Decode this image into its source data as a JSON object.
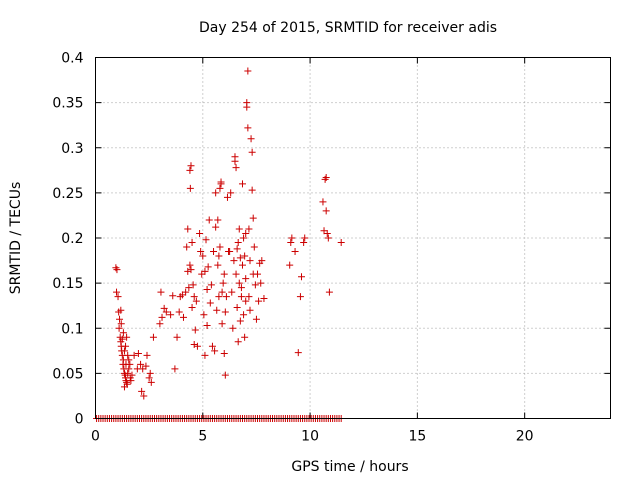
{
  "chart_data": {
    "type": "scatter",
    "title": "Day 254 of 2015, SRMTID for receiver adis",
    "xlabel": "GPS time / hours",
    "ylabel": "SRMTID / TECUs",
    "xlim": [
      0,
      24
    ],
    "ylim": [
      0,
      0.4
    ],
    "x_ticks": [
      0,
      5,
      10,
      15,
      20
    ],
    "x_tick_labels": [
      "0",
      "5",
      "10",
      "15",
      "20"
    ],
    "y_ticks": [
      0,
      0.05,
      0.1,
      0.15,
      0.2,
      0.25,
      0.3,
      0.35,
      0.4
    ],
    "y_tick_labels": [
      "0",
      "0.05",
      "0.1",
      "0.15",
      "0.2",
      "0.25",
      "0.3",
      "0.35",
      "0.4"
    ],
    "grid": true,
    "marker": "+",
    "series": [
      {
        "name": "SRMTID",
        "color": "#cc0000",
        "points": [
          [
            0.05,
            0
          ],
          [
            0.15,
            0
          ],
          [
            0.25,
            0
          ],
          [
            0.35,
            0
          ],
          [
            0.45,
            0
          ],
          [
            0.55,
            0
          ],
          [
            0.65,
            0
          ],
          [
            0.75,
            0
          ],
          [
            0.85,
            0
          ],
          [
            0.95,
            0
          ],
          [
            1.05,
            0
          ],
          [
            1.15,
            0
          ],
          [
            1.25,
            0
          ],
          [
            1.35,
            0
          ],
          [
            1.45,
            0
          ],
          [
            1.55,
            0
          ],
          [
            1.65,
            0
          ],
          [
            1.75,
            0
          ],
          [
            1.85,
            0
          ],
          [
            1.95,
            0
          ],
          [
            2.05,
            0
          ],
          [
            2.15,
            0
          ],
          [
            2.25,
            0
          ],
          [
            2.35,
            0
          ],
          [
            2.45,
            0
          ],
          [
            2.55,
            0
          ],
          [
            2.65,
            0
          ],
          [
            2.75,
            0
          ],
          [
            2.85,
            0
          ],
          [
            2.95,
            0
          ],
          [
            3.05,
            0
          ],
          [
            3.15,
            0
          ],
          [
            3.25,
            0
          ],
          [
            3.35,
            0
          ],
          [
            3.45,
            0
          ],
          [
            3.55,
            0
          ],
          [
            3.65,
            0
          ],
          [
            3.75,
            0
          ],
          [
            3.85,
            0
          ],
          [
            3.95,
            0
          ],
          [
            4.05,
            0
          ],
          [
            4.15,
            0
          ],
          [
            4.25,
            0
          ],
          [
            4.35,
            0
          ],
          [
            4.45,
            0
          ],
          [
            4.55,
            0
          ],
          [
            4.65,
            0
          ],
          [
            4.75,
            0
          ],
          [
            4.85,
            0
          ],
          [
            4.95,
            0
          ],
          [
            5.05,
            0
          ],
          [
            5.15,
            0
          ],
          [
            5.25,
            0
          ],
          [
            5.35,
            0
          ],
          [
            5.45,
            0
          ],
          [
            5.55,
            0
          ],
          [
            5.65,
            0
          ],
          [
            5.75,
            0
          ],
          [
            5.85,
            0
          ],
          [
            5.95,
            0
          ],
          [
            6.05,
            0
          ],
          [
            6.15,
            0
          ],
          [
            6.25,
            0
          ],
          [
            6.35,
            0
          ],
          [
            6.45,
            0
          ],
          [
            6.55,
            0
          ],
          [
            6.65,
            0
          ],
          [
            6.75,
            0
          ],
          [
            6.85,
            0
          ],
          [
            6.95,
            0
          ],
          [
            7.05,
            0
          ],
          [
            7.15,
            0
          ],
          [
            7.25,
            0
          ],
          [
            7.35,
            0
          ],
          [
            7.45,
            0
          ],
          [
            7.55,
            0
          ],
          [
            7.65,
            0
          ],
          [
            7.75,
            0
          ],
          [
            7.85,
            0
          ],
          [
            7.95,
            0
          ],
          [
            8.05,
            0
          ],
          [
            8.15,
            0
          ],
          [
            8.25,
            0
          ],
          [
            8.35,
            0
          ],
          [
            8.45,
            0
          ],
          [
            8.55,
            0
          ],
          [
            8.65,
            0
          ],
          [
            8.75,
            0
          ],
          [
            8.85,
            0
          ],
          [
            8.95,
            0
          ],
          [
            9.05,
            0
          ],
          [
            9.15,
            0
          ],
          [
            9.25,
            0
          ],
          [
            9.35,
            0
          ],
          [
            9.45,
            0
          ],
          [
            9.55,
            0
          ],
          [
            9.65,
            0
          ],
          [
            9.75,
            0
          ],
          [
            9.85,
            0
          ],
          [
            9.95,
            0
          ],
          [
            10.05,
            0
          ],
          [
            10.15,
            0
          ],
          [
            10.25,
            0
          ],
          [
            10.35,
            0
          ],
          [
            10.45,
            0
          ],
          [
            10.55,
            0
          ],
          [
            10.65,
            0
          ],
          [
            10.75,
            0
          ],
          [
            10.85,
            0
          ],
          [
            10.95,
            0
          ],
          [
            11.05,
            0
          ],
          [
            11.15,
            0
          ],
          [
            11.25,
            0
          ],
          [
            11.35,
            0
          ],
          [
            11.45,
            0
          ],
          [
            0.95,
            0.167
          ],
          [
            1.0,
            0.165
          ],
          [
            0.98,
            0.14
          ],
          [
            1.05,
            0.135
          ],
          [
            1.08,
            0.118
          ],
          [
            1.12,
            0.11
          ],
          [
            1.1,
            0.1
          ],
          [
            1.15,
            0.09
          ],
          [
            1.18,
            0.085
          ],
          [
            1.2,
            0.08
          ],
          [
            1.22,
            0.075
          ],
          [
            1.25,
            0.07
          ],
          [
            1.3,
            0.065
          ],
          [
            1.28,
            0.06
          ],
          [
            1.32,
            0.055
          ],
          [
            1.35,
            0.05
          ],
          [
            1.38,
            0.048
          ],
          [
            1.4,
            0.045
          ],
          [
            1.42,
            0.042
          ],
          [
            1.45,
            0.04
          ],
          [
            1.48,
            0.038
          ],
          [
            1.35,
            0.035
          ],
          [
            1.5,
            0.05
          ],
          [
            1.55,
            0.055
          ],
          [
            1.6,
            0.06
          ],
          [
            1.62,
            0.045
          ],
          [
            1.65,
            0.042
          ],
          [
            1.7,
            0.048
          ],
          [
            1.25,
            0.088
          ],
          [
            1.3,
            0.095
          ],
          [
            1.4,
            0.08
          ],
          [
            1.45,
            0.09
          ],
          [
            1.5,
            0.07
          ],
          [
            1.55,
            0.065
          ],
          [
            1.18,
            0.12
          ],
          [
            1.2,
            0.105
          ],
          [
            1.42,
            0.06
          ],
          [
            1.35,
            0.075
          ],
          [
            1.8,
            0.07
          ],
          [
            2.0,
            0.072
          ],
          [
            2.1,
            0.06
          ],
          [
            2.2,
            0.055
          ],
          [
            2.25,
            0.025
          ],
          [
            2.4,
            0.07
          ],
          [
            2.5,
            0.045
          ],
          [
            2.6,
            0.04
          ],
          [
            2.55,
            0.05
          ],
          [
            2.7,
            0.09
          ],
          [
            1.95,
            0.055
          ],
          [
            2.35,
            0.058
          ],
          [
            2.15,
            0.03
          ],
          [
            3.0,
            0.105
          ],
          [
            3.1,
            0.112
          ],
          [
            3.05,
            0.14
          ],
          [
            3.2,
            0.122
          ],
          [
            3.3,
            0.118
          ],
          [
            3.5,
            0.115
          ],
          [
            3.6,
            0.136
          ],
          [
            3.7,
            0.055
          ],
          [
            3.8,
            0.09
          ],
          [
            3.9,
            0.118
          ],
          [
            3.95,
            0.135
          ],
          [
            4.05,
            0.137
          ],
          [
            4.1,
            0.112
          ],
          [
            4.2,
            0.14
          ],
          [
            4.25,
            0.19
          ],
          [
            4.3,
            0.21
          ],
          [
            4.3,
            0.163
          ],
          [
            4.35,
            0.145
          ],
          [
            4.4,
            0.17
          ],
          [
            4.4,
            0.275
          ],
          [
            4.42,
            0.255
          ],
          [
            4.45,
            0.28
          ],
          [
            4.45,
            0.165
          ],
          [
            4.5,
            0.195
          ],
          [
            4.5,
            0.123
          ],
          [
            4.55,
            0.148
          ],
          [
            4.6,
            0.135
          ],
          [
            4.6,
            0.082
          ],
          [
            4.65,
            0.098
          ],
          [
            4.7,
            0.13
          ],
          [
            4.75,
            0.08
          ],
          [
            4.85,
            0.205
          ],
          [
            4.9,
            0.185
          ],
          [
            4.95,
            0.16
          ],
          [
            5.0,
            0.18
          ],
          [
            5.05,
            0.115
          ],
          [
            5.1,
            0.07
          ],
          [
            5.1,
            0.163
          ],
          [
            5.15,
            0.198
          ],
          [
            5.2,
            0.143
          ],
          [
            5.2,
            0.103
          ],
          [
            5.25,
            0.168
          ],
          [
            5.3,
            0.22
          ],
          [
            5.35,
            0.128
          ],
          [
            5.4,
            0.148
          ],
          [
            5.45,
            0.08
          ],
          [
            5.5,
            0.185
          ],
          [
            5.55,
            0.075
          ],
          [
            5.6,
            0.212
          ],
          [
            5.6,
            0.25
          ],
          [
            5.65,
            0.12
          ],
          [
            5.7,
            0.17
          ],
          [
            5.7,
            0.22
          ],
          [
            5.75,
            0.18
          ],
          [
            5.75,
            0.135
          ],
          [
            5.8,
            0.19
          ],
          [
            5.8,
            0.255
          ],
          [
            5.85,
            0.262
          ],
          [
            5.85,
            0.26
          ],
          [
            5.9,
            0.105
          ],
          [
            5.9,
            0.14
          ],
          [
            5.95,
            0.15
          ],
          [
            6.0,
            0.072
          ],
          [
            6.0,
            0.16
          ],
          [
            6.05,
            0.048
          ],
          [
            6.05,
            0.118
          ],
          [
            6.1,
            0.135
          ],
          [
            6.15,
            0.245
          ],
          [
            6.2,
            0.185
          ],
          [
            6.25,
            0.185
          ],
          [
            6.3,
            0.25
          ],
          [
            6.35,
            0.14
          ],
          [
            6.4,
            0.1
          ],
          [
            6.45,
            0.175
          ],
          [
            6.5,
            0.285
          ],
          [
            6.5,
            0.29
          ],
          [
            6.55,
            0.278
          ],
          [
            6.55,
            0.16
          ],
          [
            6.6,
            0.188
          ],
          [
            6.6,
            0.123
          ],
          [
            6.65,
            0.085
          ],
          [
            6.65,
            0.195
          ],
          [
            6.7,
            0.15
          ],
          [
            6.7,
            0.21
          ],
          [
            6.75,
            0.108
          ],
          [
            6.75,
            0.178
          ],
          [
            6.8,
            0.145
          ],
          [
            6.8,
            0.135
          ],
          [
            6.85,
            0.17
          ],
          [
            6.85,
            0.26
          ],
          [
            6.9,
            0.2
          ],
          [
            6.9,
            0.115
          ],
          [
            6.95,
            0.18
          ],
          [
            7.0,
            0.205
          ],
          [
            7.0,
            0.155
          ],
          [
            7.05,
            0.35
          ],
          [
            7.05,
            0.345
          ],
          [
            7.1,
            0.385
          ],
          [
            7.1,
            0.322
          ],
          [
            7.15,
            0.21
          ],
          [
            7.15,
            0.135
          ],
          [
            7.2,
            0.175
          ],
          [
            7.2,
            0.12
          ],
          [
            7.25,
            0.31
          ],
          [
            7.3,
            0.295
          ],
          [
            7.3,
            0.253
          ],
          [
            7.35,
            0.222
          ],
          [
            7.35,
            0.16
          ],
          [
            7.4,
            0.19
          ],
          [
            7.45,
            0.148
          ],
          [
            7.5,
            0.11
          ],
          [
            7.55,
            0.16
          ],
          [
            7.6,
            0.13
          ],
          [
            7.65,
            0.172
          ],
          [
            7.7,
            0.15
          ],
          [
            7.75,
            0.175
          ],
          [
            7.85,
            0.133
          ],
          [
            7.0,
            0.13
          ],
          [
            6.95,
            0.09
          ],
          [
            9.05,
            0.17
          ],
          [
            9.1,
            0.195
          ],
          [
            9.15,
            0.2
          ],
          [
            9.3,
            0.185
          ],
          [
            9.45,
            0.073
          ],
          [
            9.55,
            0.135
          ],
          [
            9.6,
            0.157
          ],
          [
            9.7,
            0.195
          ],
          [
            9.75,
            0.2
          ],
          [
            10.6,
            0.24
          ],
          [
            10.7,
            0.265
          ],
          [
            10.75,
            0.267
          ],
          [
            10.65,
            0.208
          ],
          [
            10.8,
            0.205
          ],
          [
            10.75,
            0.23
          ],
          [
            10.85,
            0.2
          ],
          [
            10.9,
            0.14
          ],
          [
            11.45,
            0.195
          ]
        ]
      }
    ]
  }
}
